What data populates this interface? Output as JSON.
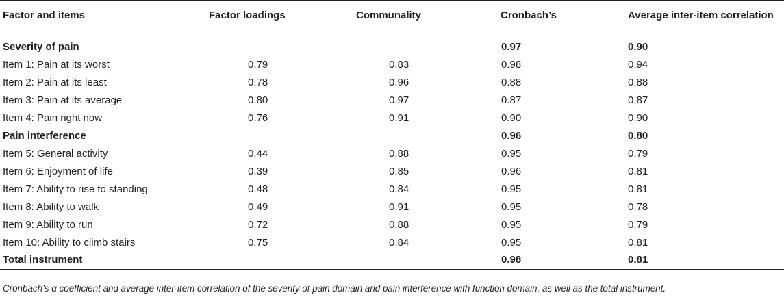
{
  "table": {
    "headers": [
      "Factor and items",
      "Factor loadings",
      "Communality",
      "Cronbach’s",
      "Average inter-item correlation"
    ],
    "rows": [
      {
        "type": "section",
        "label": "Severity of pain",
        "loading": "",
        "communality": "",
        "cronbach": "0.97",
        "avg": "0.90"
      },
      {
        "type": "item",
        "label": "Item 1: Pain at its worst",
        "loading": "0.79",
        "communality": "0.83",
        "cronbach": "0.98",
        "avg": "0.94"
      },
      {
        "type": "item",
        "label": "Item 2: Pain at its least",
        "loading": "0.78",
        "communality": "0.96",
        "cronbach": "0.88",
        "avg": "0.88"
      },
      {
        "type": "item",
        "label": "Item 3: Pain at its average",
        "loading": "0.80",
        "communality": "0.97",
        "cronbach": "0.87",
        "avg": "0.87"
      },
      {
        "type": "item",
        "label": "Item 4: Pain right now",
        "loading": "0.76",
        "communality": "0.91",
        "cronbach": "0.90",
        "avg": "0.90"
      },
      {
        "type": "section",
        "label": "Pain interference",
        "loading": "",
        "communality": "",
        "cronbach": "0.96",
        "avg": "0.80"
      },
      {
        "type": "item",
        "label": "Item 5: General activity",
        "loading": "0.44",
        "communality": "0.88",
        "cronbach": "0.95",
        "avg": "0.79"
      },
      {
        "type": "item",
        "label": "Item 6: Enjoyment of life",
        "loading": "0.39",
        "communality": "0.85",
        "cronbach": "0.96",
        "avg": "0.81"
      },
      {
        "type": "item",
        "label": "Item 7: Ability to rise to standing",
        "loading": "0.48",
        "communality": "0.84",
        "cronbach": "0.95",
        "avg": "0.81"
      },
      {
        "type": "item",
        "label": "Item 8: Ability to walk",
        "loading": "0.49",
        "communality": "0.91",
        "cronbach": "0.95",
        "avg": "0.78"
      },
      {
        "type": "item",
        "label": "Item 9: Ability to run",
        "loading": "0.72",
        "communality": "0.88",
        "cronbach": "0.95",
        "avg": "0.79"
      },
      {
        "type": "item",
        "label": "Item 10: Ability to climb stairs",
        "loading": "0.75",
        "communality": "0.84",
        "cronbach": "0.95",
        "avg": "0.81"
      },
      {
        "type": "section",
        "label": "Total instrument",
        "loading": "",
        "communality": "",
        "cronbach": "0.98",
        "avg": "0.81"
      }
    ]
  },
  "caption": "Cronbach’s α coefficient and average inter-item correlation of the severity of pain domain and pain interference with function domain, as well as the total instrument."
}
